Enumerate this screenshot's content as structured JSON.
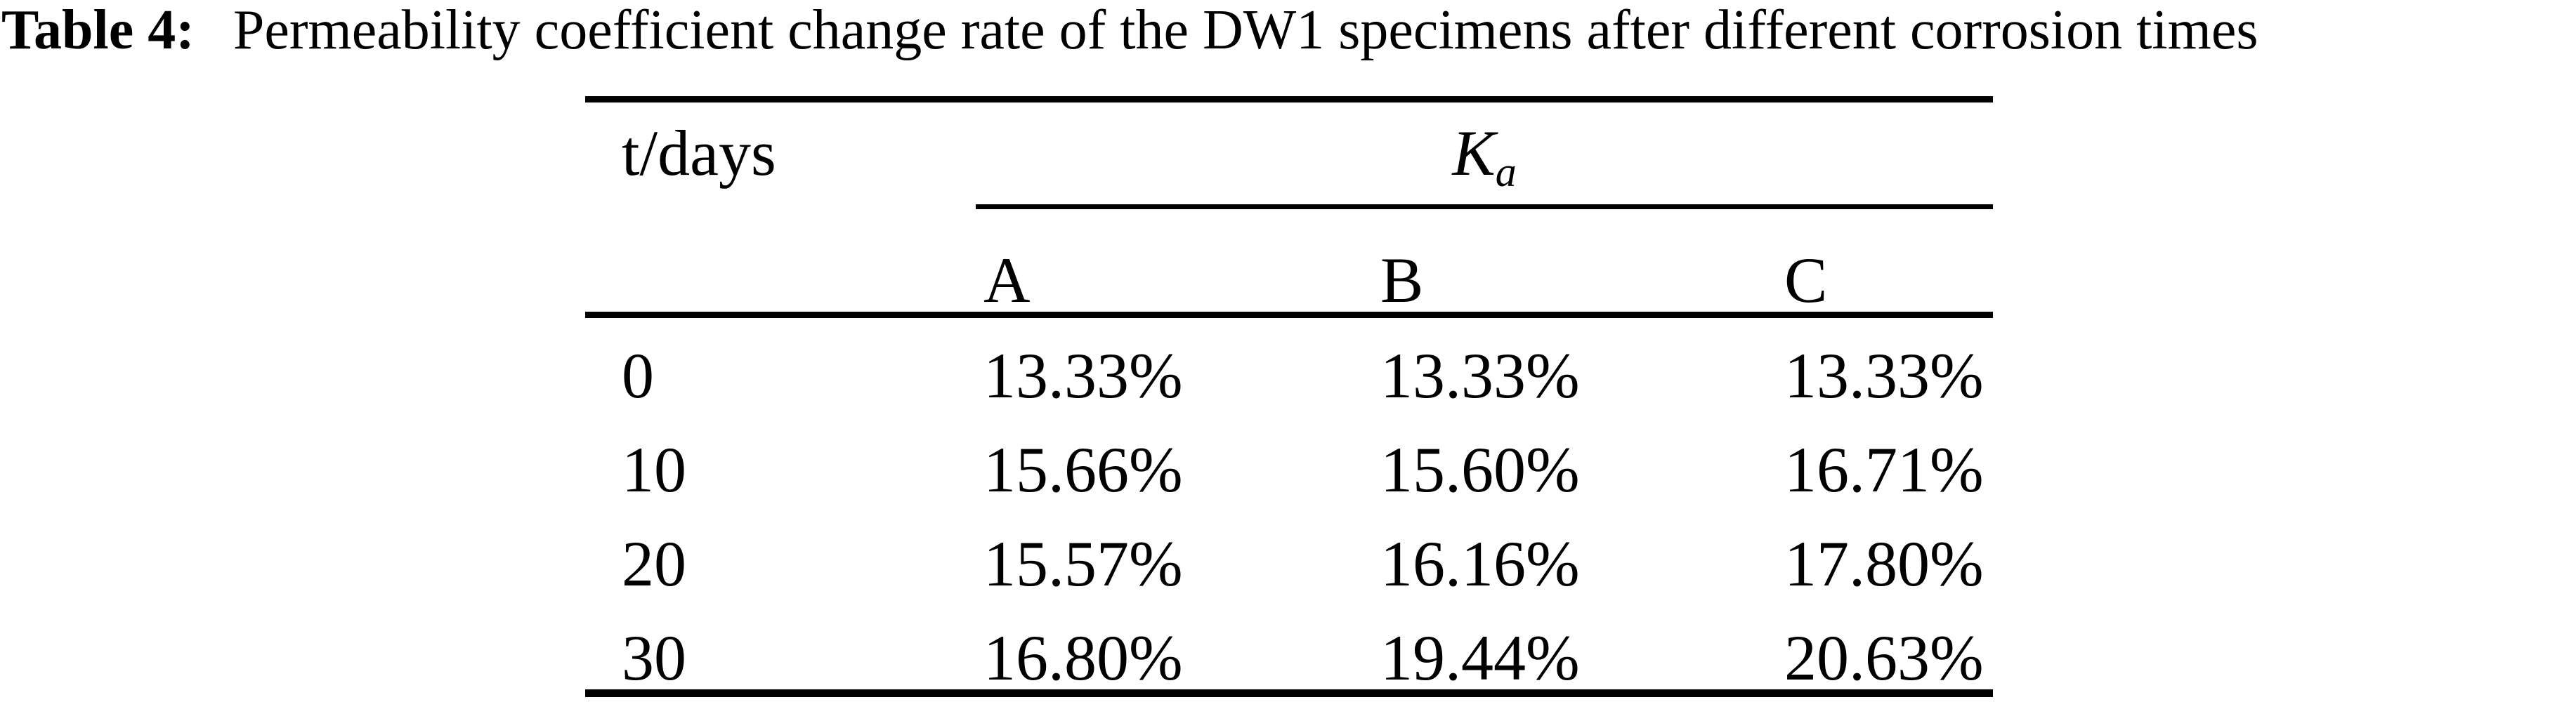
{
  "colors": {
    "background": "#ffffff",
    "text": "#000000",
    "rule": "#000000"
  },
  "caption": {
    "label": "Table 4:",
    "text": "Permeability coefficient change rate of the DW1 specimens after different corrosion times"
  },
  "table": {
    "time_column_header": "t/days",
    "group_header": {
      "symbol": "K",
      "subscript": "a"
    },
    "sub_headers": {
      "a": "A",
      "b": "B",
      "c": "C"
    },
    "rows": [
      {
        "t": "0",
        "A": "13.33%",
        "B": "13.33%",
        "C": "13.33%"
      },
      {
        "t": "10",
        "A": "15.66%",
        "B": "15.60%",
        "C": "16.71%"
      },
      {
        "t": "20",
        "A": "15.57%",
        "B": "16.16%",
        "C": "17.80%"
      },
      {
        "t": "30",
        "A": "16.80%",
        "B": "19.44%",
        "C": "20.63%"
      }
    ]
  }
}
